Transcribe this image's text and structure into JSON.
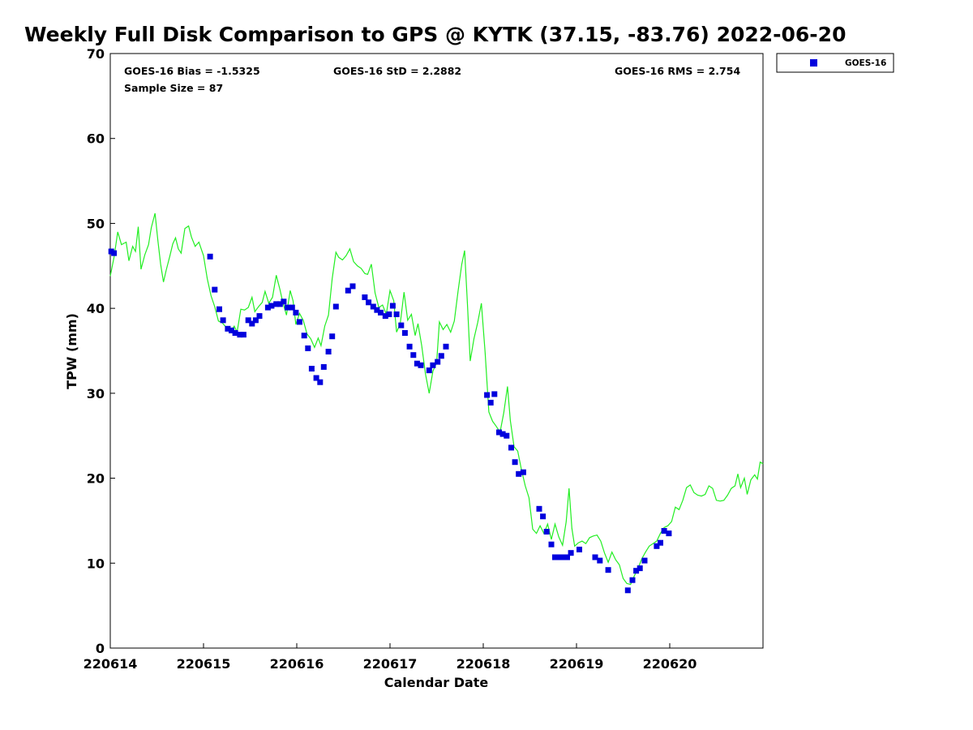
{
  "chart_data": {
    "type": "scatter",
    "title": "Weekly Full Disk Comparison to GPS @ KYTK (37.15, -83.76) 2022-06-20",
    "xlabel": "Calendar Date",
    "ylabel": "TPW (mm)",
    "xlim": [
      0,
      7
    ],
    "ylim": [
      0,
      70
    ],
    "yticks": [
      0,
      10,
      20,
      30,
      40,
      50,
      60,
      70
    ],
    "xticks": [
      0,
      1,
      2,
      3,
      4,
      5,
      6
    ],
    "xtick_labels": [
      "220614",
      "220615",
      "220616",
      "220617",
      "220618",
      "220619",
      "220620"
    ],
    "stats": {
      "bias": "GOES-16 Bias = -1.5325",
      "std": "GOES-16 StD = 2.2882",
      "rms": "GOES-16 RMS = 2.754",
      "sample": "Sample Size = 87"
    },
    "legend": {
      "label": "GOES-16",
      "color": "#0000dd",
      "position": "outside-top-right"
    },
    "series": [
      {
        "name": "GPS",
        "kind": "line",
        "color": "#22ee22",
        "points": [
          [
            0,
            43.8
          ],
          [
            0.04,
            46
          ],
          [
            0.08,
            49
          ],
          [
            0.12,
            47.5
          ],
          [
            0.17,
            47.8
          ],
          [
            0.2,
            45.6
          ],
          [
            0.24,
            47.3
          ],
          [
            0.27,
            46.7
          ],
          [
            0.3,
            49.6
          ],
          [
            0.33,
            44.6
          ],
          [
            0.37,
            46.3
          ],
          [
            0.41,
            47.5
          ],
          [
            0.44,
            49.5
          ],
          [
            0.48,
            51.2
          ],
          [
            0.51,
            48
          ],
          [
            0.54,
            45.2
          ],
          [
            0.57,
            43.1
          ],
          [
            0.6,
            44.5
          ],
          [
            0.64,
            46.2
          ],
          [
            0.67,
            47.6
          ],
          [
            0.7,
            48.3
          ],
          [
            0.73,
            47
          ],
          [
            0.76,
            46.5
          ],
          [
            0.8,
            49.4
          ],
          [
            0.84,
            49.7
          ],
          [
            0.87,
            48.4
          ],
          [
            0.91,
            47.3
          ],
          [
            0.95,
            47.8
          ],
          [
            1.0,
            46.2
          ],
          [
            1.04,
            43.5
          ],
          [
            1.08,
            41.5
          ],
          [
            1.12,
            40.2
          ],
          [
            1.16,
            38.5
          ],
          [
            1.2,
            38.3
          ],
          [
            1.24,
            37.8
          ],
          [
            1.29,
            37.3
          ],
          [
            1.33,
            37.9
          ],
          [
            1.36,
            37.2
          ],
          [
            1.4,
            39.9
          ],
          [
            1.44,
            39.8
          ],
          [
            1.48,
            40.1
          ],
          [
            1.52,
            41.3
          ],
          [
            1.55,
            39.6
          ],
          [
            1.59,
            40.2
          ],
          [
            1.63,
            40.7
          ],
          [
            1.66,
            42
          ],
          [
            1.7,
            40.6
          ],
          [
            1.74,
            41.3
          ],
          [
            1.78,
            43.9
          ],
          [
            1.82,
            42.2
          ],
          [
            1.85,
            40.7
          ],
          [
            1.89,
            39.2
          ],
          [
            1.93,
            42.1
          ],
          [
            1.96,
            40.9
          ],
          [
            1.99,
            38.1
          ],
          [
            2.03,
            39.4
          ],
          [
            2.07,
            38.6
          ],
          [
            2.11,
            37
          ],
          [
            2.15,
            36.4
          ],
          [
            2.19,
            35.4
          ],
          [
            2.23,
            36.5
          ],
          [
            2.26,
            35.6
          ],
          [
            2.3,
            37.9
          ],
          [
            2.34,
            39.2
          ],
          [
            2.38,
            43.5
          ],
          [
            2.42,
            46.6
          ],
          [
            2.45,
            46
          ],
          [
            2.49,
            45.7
          ],
          [
            2.53,
            46.2
          ],
          [
            2.57,
            47
          ],
          [
            2.61,
            45.5
          ],
          [
            2.65,
            45
          ],
          [
            2.69,
            44.7
          ],
          [
            2.73,
            44.1
          ],
          [
            2.76,
            44
          ],
          [
            2.8,
            45.2
          ],
          [
            2.84,
            41.8
          ],
          [
            2.88,
            40.1
          ],
          [
            2.92,
            40.4
          ],
          [
            2.96,
            39.3
          ],
          [
            3.0,
            42.1
          ],
          [
            3.04,
            40.9
          ],
          [
            3.07,
            37.2
          ],
          [
            3.11,
            38.2
          ],
          [
            3.15,
            41.9
          ],
          [
            3.19,
            38.6
          ],
          [
            3.23,
            39.3
          ],
          [
            3.27,
            36.8
          ],
          [
            3.3,
            38.2
          ],
          [
            3.34,
            35.6
          ],
          [
            3.38,
            32.3
          ],
          [
            3.42,
            30
          ],
          [
            3.46,
            32.6
          ],
          [
            3.5,
            33.6
          ],
          [
            3.53,
            38.4
          ],
          [
            3.57,
            37.5
          ],
          [
            3.61,
            38.1
          ],
          [
            3.65,
            37.2
          ],
          [
            3.69,
            38.5
          ],
          [
            3.73,
            42
          ],
          [
            3.77,
            45.2
          ],
          [
            3.8,
            46.8
          ],
          [
            3.83,
            40.5
          ],
          [
            3.86,
            33.8
          ],
          [
            3.9,
            36.4
          ],
          [
            3.94,
            38.3
          ],
          [
            3.98,
            40.6
          ],
          [
            4.02,
            34.8
          ],
          [
            4.06,
            27.8
          ],
          [
            4.1,
            26.7
          ],
          [
            4.14,
            26.1
          ],
          [
            4.18,
            25.4
          ],
          [
            4.22,
            27.7
          ],
          [
            4.26,
            30.8
          ],
          [
            4.29,
            26.8
          ],
          [
            4.33,
            23.7
          ],
          [
            4.37,
            23.2
          ],
          [
            4.41,
            21
          ],
          [
            4.45,
            19.1
          ],
          [
            4.49,
            17.7
          ],
          [
            4.53,
            14
          ],
          [
            4.57,
            13.5
          ],
          [
            4.61,
            14.4
          ],
          [
            4.65,
            13.5
          ],
          [
            4.69,
            14.6
          ],
          [
            4.73,
            12.8
          ],
          [
            4.77,
            14.6
          ],
          [
            4.81,
            13.1
          ],
          [
            4.85,
            12.1
          ],
          [
            4.89,
            14.9
          ],
          [
            4.92,
            18.8
          ],
          [
            4.95,
            14.1
          ],
          [
            4.98,
            12
          ],
          [
            5.02,
            12.4
          ],
          [
            5.06,
            12.6
          ],
          [
            5.1,
            12.3
          ],
          [
            5.14,
            13
          ],
          [
            5.18,
            13.2
          ],
          [
            5.22,
            13.3
          ],
          [
            5.26,
            12.6
          ],
          [
            5.3,
            11.2
          ],
          [
            5.34,
            10.1
          ],
          [
            5.38,
            11.3
          ],
          [
            5.42,
            10.4
          ],
          [
            5.46,
            9.8
          ],
          [
            5.5,
            8.2
          ],
          [
            5.54,
            7.6
          ],
          [
            5.58,
            7.5
          ],
          [
            5.62,
            8.5
          ],
          [
            5.66,
            9.4
          ],
          [
            5.7,
            10.5
          ],
          [
            5.74,
            11.3
          ],
          [
            5.78,
            12
          ],
          [
            5.82,
            12.3
          ],
          [
            5.86,
            12.6
          ],
          [
            5.9,
            13.5
          ],
          [
            5.94,
            14.2
          ],
          [
            5.98,
            14.4
          ],
          [
            6.02,
            14.9
          ],
          [
            6.06,
            16.6
          ],
          [
            6.1,
            16.3
          ],
          [
            6.14,
            17.4
          ],
          [
            6.18,
            18.9
          ],
          [
            6.22,
            19.2
          ],
          [
            6.26,
            18.3
          ],
          [
            6.3,
            18
          ],
          [
            6.34,
            17.9
          ],
          [
            6.38,
            18.1
          ],
          [
            6.42,
            19.1
          ],
          [
            6.46,
            18.8
          ],
          [
            6.5,
            17.4
          ],
          [
            6.54,
            17.3
          ],
          [
            6.58,
            17.4
          ],
          [
            6.62,
            18
          ],
          [
            6.66,
            18.8
          ],
          [
            6.7,
            19.1
          ],
          [
            6.73,
            20.5
          ],
          [
            6.76,
            18.9
          ],
          [
            6.8,
            20
          ],
          [
            6.83,
            18.1
          ],
          [
            6.87,
            19.8
          ],
          [
            6.91,
            20.4
          ],
          [
            6.94,
            19.9
          ],
          [
            6.97,
            21.9
          ],
          [
            7.0,
            21.7
          ]
        ]
      },
      {
        "name": "GOES-16",
        "kind": "scatter",
        "color": "#0000dd",
        "points": [
          [
            0.01,
            46.7
          ],
          [
            0.04,
            46.5
          ],
          [
            1.07,
            46.1
          ],
          [
            1.12,
            42.2
          ],
          [
            1.17,
            39.9
          ],
          [
            1.21,
            38.6
          ],
          [
            1.26,
            37.6
          ],
          [
            1.3,
            37.4
          ],
          [
            1.34,
            37.1
          ],
          [
            1.39,
            36.9
          ],
          [
            1.43,
            36.9
          ],
          [
            1.48,
            38.6
          ],
          [
            1.52,
            38.2
          ],
          [
            1.56,
            38.6
          ],
          [
            1.6,
            39.1
          ],
          [
            1.69,
            40.1
          ],
          [
            1.73,
            40.3
          ],
          [
            1.78,
            40.5
          ],
          [
            1.82,
            40.5
          ],
          [
            1.86,
            40.8
          ],
          [
            1.9,
            40.1
          ],
          [
            1.95,
            40.1
          ],
          [
            1.99,
            39.5
          ],
          [
            2.03,
            38.4
          ],
          [
            2.08,
            36.8
          ],
          [
            2.12,
            35.3
          ],
          [
            2.16,
            32.9
          ],
          [
            2.21,
            31.8
          ],
          [
            2.25,
            31.3
          ],
          [
            2.29,
            33.1
          ],
          [
            2.34,
            34.9
          ],
          [
            2.38,
            36.7
          ],
          [
            2.42,
            40.2
          ],
          [
            2.55,
            42.1
          ],
          [
            2.6,
            42.6
          ],
          [
            2.73,
            41.3
          ],
          [
            2.77,
            40.7
          ],
          [
            2.82,
            40.2
          ],
          [
            2.86,
            39.8
          ],
          [
            2.9,
            39.5
          ],
          [
            2.95,
            39.1
          ],
          [
            2.99,
            39.3
          ],
          [
            3.03,
            40.3
          ],
          [
            3.07,
            39.3
          ],
          [
            3.12,
            38
          ],
          [
            3.16,
            37.1
          ],
          [
            3.21,
            35.5
          ],
          [
            3.25,
            34.5
          ],
          [
            3.29,
            33.5
          ],
          [
            3.33,
            33.3
          ],
          [
            3.42,
            32.7
          ],
          [
            3.46,
            33.3
          ],
          [
            3.51,
            33.7
          ],
          [
            3.55,
            34.4
          ],
          [
            3.6,
            35.5
          ],
          [
            4.04,
            29.8
          ],
          [
            4.08,
            28.9
          ],
          [
            4.12,
            29.9
          ],
          [
            4.17,
            25.4
          ],
          [
            4.21,
            25.2
          ],
          [
            4.25,
            25
          ],
          [
            4.3,
            23.6
          ],
          [
            4.34,
            21.9
          ],
          [
            4.38,
            20.5
          ],
          [
            4.43,
            20.7
          ],
          [
            4.6,
            16.4
          ],
          [
            4.64,
            15.5
          ],
          [
            4.68,
            13.7
          ],
          [
            4.73,
            12.2
          ],
          [
            4.77,
            10.7
          ],
          [
            4.81,
            10.7
          ],
          [
            4.86,
            10.7
          ],
          [
            4.9,
            10.7
          ],
          [
            4.94,
            11.2
          ],
          [
            5.03,
            11.6
          ],
          [
            5.2,
            10.7
          ],
          [
            5.25,
            10.3
          ],
          [
            5.34,
            9.2
          ],
          [
            5.55,
            6.8
          ],
          [
            5.6,
            8
          ],
          [
            5.64,
            9.1
          ],
          [
            5.68,
            9.4
          ],
          [
            5.73,
            10.3
          ],
          [
            5.86,
            12
          ],
          [
            5.9,
            12.4
          ],
          [
            5.94,
            13.8
          ],
          [
            5.99,
            13.5
          ]
        ]
      }
    ]
  }
}
